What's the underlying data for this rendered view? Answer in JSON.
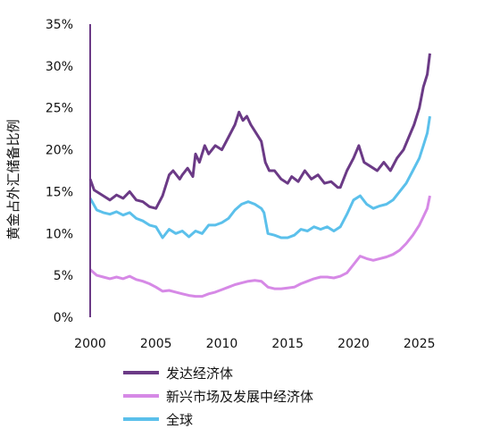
{
  "chart_data": {
    "type": "line",
    "title": "",
    "xlabel": "",
    "ylabel": "黄金占外汇储备比例",
    "xlim": [
      2000,
      2025.9
    ],
    "ylim": [
      0,
      35
    ],
    "x_ticks": [
      "2000",
      "2005",
      "2010",
      "2015",
      "2020",
      "2025"
    ],
    "y_ticks": [
      "0%",
      "5%",
      "10%",
      "15%",
      "20%",
      "25%",
      "30%",
      "35%"
    ],
    "grid": false,
    "legend_position": "bottom",
    "series": [
      {
        "name": "发达经济体",
        "color": "#6b3a86",
        "x": [
          2000,
          2000.3,
          2001,
          2001.5,
          2002,
          2002.5,
          2003,
          2003.5,
          2004,
          2004.5,
          2005,
          2005.5,
          2006,
          2006.3,
          2006.8,
          2007,
          2007.4,
          2007.8,
          2008,
          2008.3,
          2008.7,
          2009,
          2009.5,
          2010,
          2010.5,
          2011,
          2011.3,
          2011.6,
          2011.9,
          2012.2,
          2012.6,
          2013,
          2013.3,
          2013.6,
          2014,
          2014.5,
          2015,
          2015.3,
          2015.8,
          2016.3,
          2016.8,
          2017.3,
          2017.8,
          2018.3,
          2018.8,
          2019,
          2019.5,
          2020,
          2020.4,
          2020.8,
          2021.3,
          2021.8,
          2022.3,
          2022.8,
          2023.3,
          2023.8,
          2024.2,
          2024.6,
          2025,
          2025.3,
          2025.6,
          2025.8
        ],
        "y": [
          16.5,
          15.2,
          14.5,
          14.0,
          14.6,
          14.2,
          15.0,
          14.0,
          13.8,
          13.2,
          13.0,
          14.5,
          17.0,
          17.5,
          16.5,
          17.0,
          17.8,
          16.8,
          19.5,
          18.5,
          20.5,
          19.5,
          20.5,
          20.0,
          21.5,
          23.0,
          24.5,
          23.5,
          24.0,
          23.0,
          22.0,
          21.0,
          18.5,
          17.5,
          17.5,
          16.5,
          16.0,
          16.8,
          16.2,
          17.5,
          16.5,
          17.0,
          16.0,
          16.2,
          15.5,
          15.5,
          17.5,
          19.0,
          20.5,
          18.5,
          18.0,
          17.5,
          18.5,
          17.5,
          19.0,
          20.0,
          21.5,
          23.0,
          25.0,
          27.5,
          29.0,
          31.5
        ]
      },
      {
        "name": "新兴市场及发展中经济体",
        "color": "#d689e6",
        "x": [
          2000,
          2000.5,
          2001,
          2001.5,
          2002,
          2002.5,
          2003,
          2003.5,
          2004,
          2004.5,
          2005,
          2005.5,
          2006,
          2006.5,
          2007,
          2007.5,
          2008,
          2008.5,
          2009,
          2009.5,
          2010,
          2010.5,
          2011,
          2011.5,
          2012,
          2012.5,
          2013,
          2013.5,
          2014,
          2014.5,
          2015,
          2015.5,
          2016,
          2016.5,
          2017,
          2017.5,
          2018,
          2018.5,
          2019,
          2019.5,
          2020,
          2020.5,
          2021,
          2021.5,
          2022,
          2022.5,
          2023,
          2023.5,
          2024,
          2024.5,
          2025,
          2025.3,
          2025.6,
          2025.8
        ],
        "y": [
          5.7,
          5.0,
          4.8,
          4.6,
          4.8,
          4.6,
          4.9,
          4.5,
          4.3,
          4.0,
          3.6,
          3.1,
          3.2,
          3.0,
          2.8,
          2.6,
          2.5,
          2.5,
          2.8,
          3.0,
          3.3,
          3.6,
          3.9,
          4.1,
          4.3,
          4.4,
          4.3,
          3.6,
          3.4,
          3.4,
          3.5,
          3.6,
          4.0,
          4.3,
          4.6,
          4.8,
          4.8,
          4.7,
          4.9,
          5.3,
          6.3,
          7.3,
          7.0,
          6.8,
          7.0,
          7.2,
          7.5,
          8.0,
          8.8,
          9.8,
          11.0,
          12.0,
          13.0,
          14.5
        ]
      },
      {
        "name": "全球",
        "color": "#5bc0eb",
        "x": [
          2000,
          2000.5,
          2001,
          2001.5,
          2002,
          2002.5,
          2003,
          2003.5,
          2004,
          2004.5,
          2005,
          2005.5,
          2006,
          2006.5,
          2007,
          2007.5,
          2008,
          2008.5,
          2009,
          2009.5,
          2010,
          2010.5,
          2011,
          2011.5,
          2012,
          2012.5,
          2013,
          2013.2,
          2013.5,
          2014,
          2014.5,
          2015,
          2015.5,
          2016,
          2016.5,
          2017,
          2017.5,
          2018,
          2018.5,
          2019,
          2019.5,
          2020,
          2020.5,
          2021,
          2021.5,
          2022,
          2022.5,
          2023,
          2023.5,
          2024,
          2024.5,
          2025,
          2025.3,
          2025.6,
          2025.8
        ],
        "y": [
          14.2,
          12.8,
          12.5,
          12.3,
          12.6,
          12.2,
          12.5,
          11.8,
          11.5,
          11.0,
          10.8,
          9.5,
          10.5,
          10.0,
          10.3,
          9.6,
          10.3,
          10.0,
          11.0,
          11.0,
          11.3,
          11.8,
          12.8,
          13.5,
          13.8,
          13.5,
          13.0,
          12.5,
          10.0,
          9.8,
          9.5,
          9.5,
          9.8,
          10.5,
          10.3,
          10.8,
          10.5,
          10.8,
          10.3,
          10.8,
          12.3,
          14.0,
          14.5,
          13.5,
          13.0,
          13.3,
          13.5,
          14.0,
          15.0,
          16.0,
          17.5,
          19.0,
          20.5,
          22.0,
          24.0
        ]
      }
    ]
  }
}
